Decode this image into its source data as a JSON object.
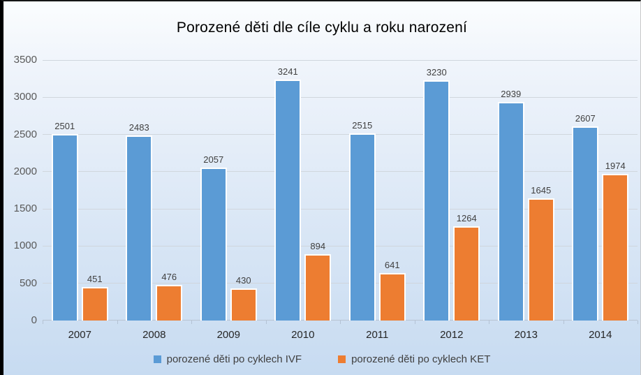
{
  "title": "Porozené děti dle cíle cyklu a roku narození",
  "chart_data": {
    "type": "bar",
    "title": "Porozené děti dle cíle cyklu a roku narození",
    "categories": [
      "2007",
      "2008",
      "2009",
      "2010",
      "2011",
      "2012",
      "2013",
      "2014"
    ],
    "series": [
      {
        "key": "ivf",
        "name": "porozené děti po cyklech IVF",
        "color": "#5b9bd5",
        "values": [
          2501,
          2483,
          2057,
          3241,
          2515,
          3230,
          2939,
          2607
        ]
      },
      {
        "key": "ket",
        "name": "porozené děti po cyklech KET",
        "color": "#ed7d31",
        "values": [
          451,
          476,
          430,
          894,
          641,
          1264,
          1645,
          1974
        ]
      }
    ],
    "xlabel": "",
    "ylabel": "",
    "ylim": [
      0,
      3500
    ],
    "ytick_step": 500,
    "ytick_labels": [
      "0",
      "500",
      "1000",
      "1500",
      "2000",
      "2500",
      "3000",
      "3500"
    ],
    "grid": true,
    "data_labels": true,
    "legend_position": "bottom"
  }
}
